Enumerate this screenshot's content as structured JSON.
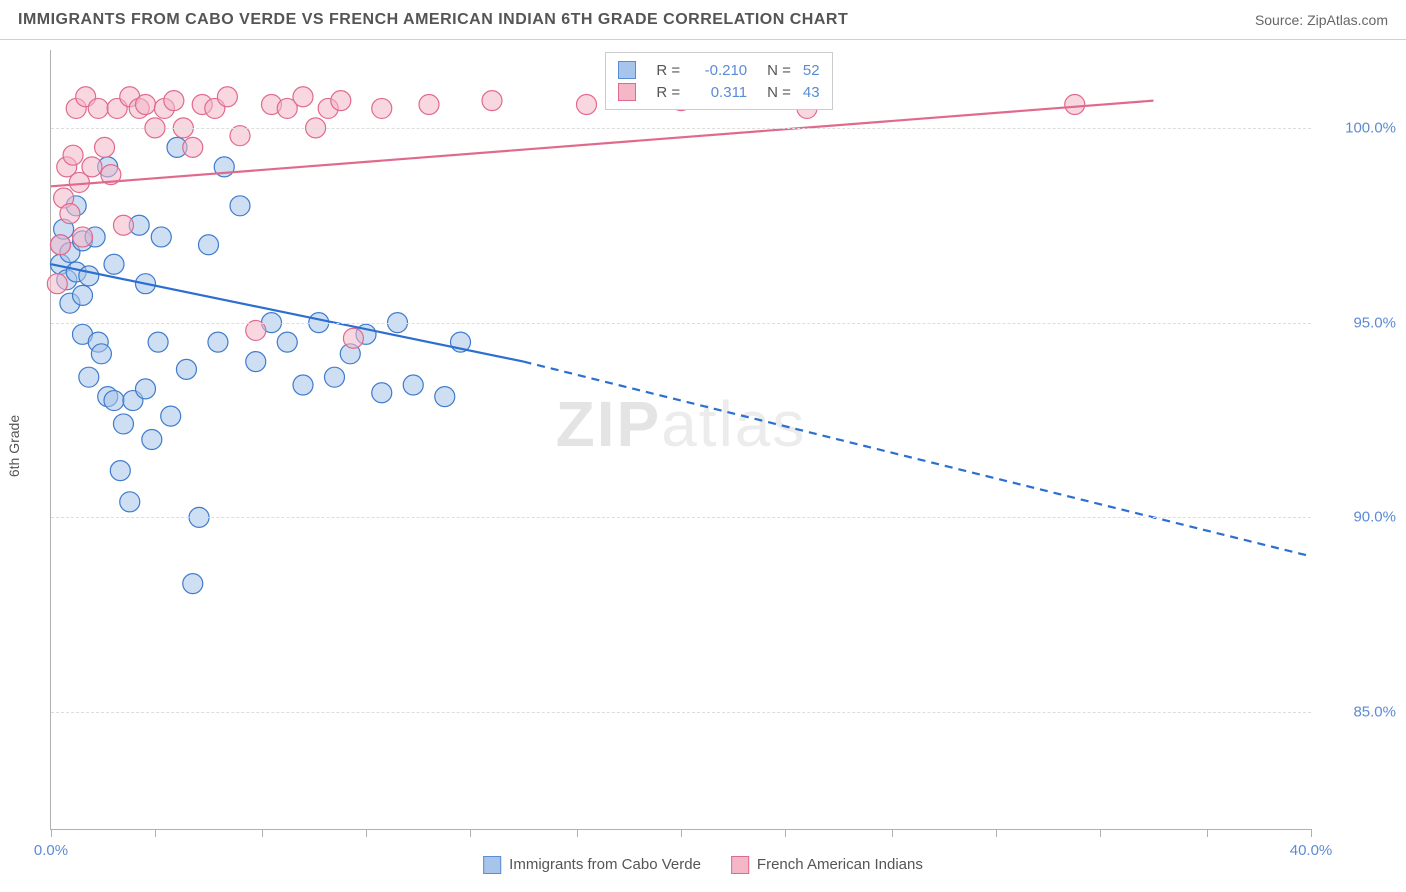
{
  "header": {
    "title": "IMMIGRANTS FROM CABO VERDE VS FRENCH AMERICAN INDIAN 6TH GRADE CORRELATION CHART",
    "source_prefix": "Source: ",
    "source_name": "ZipAtlas.com"
  },
  "axes": {
    "ylabel": "6th Grade",
    "ylim": [
      82,
      102
    ],
    "yticks": [
      85.0,
      90.0,
      95.0,
      100.0
    ],
    "ytick_labels": [
      "85.0%",
      "90.0%",
      "95.0%",
      "100.0%"
    ],
    "xlim": [
      0,
      40
    ],
    "xticks_major": [
      0,
      40
    ],
    "xtick_labels": [
      "0.0%",
      "40.0%"
    ],
    "xticks_minor": [
      3.3,
      6.7,
      10.0,
      13.3,
      16.7,
      20.0,
      23.3,
      26.7,
      30.0,
      33.3,
      36.7
    ],
    "grid_color": "#dddddd",
    "axis_color": "#b0b0b0",
    "tick_label_color": "#5b8bd4",
    "tick_fontsize": 15
  },
  "watermark": {
    "text_bold": "ZIP",
    "text_light": "atlas",
    "color": "#e4e4e4",
    "fontsize": 64
  },
  "bottom_legend": {
    "series1": {
      "label": "Immigrants from Cabo Verde",
      "fill": "#a7c4ea",
      "stroke": "#5b8bd4"
    },
    "series2": {
      "label": "French American Indians",
      "fill": "#f4b7c8",
      "stroke": "#e06a8c"
    }
  },
  "corr_box": {
    "rows": [
      {
        "fill": "#a7c4ea",
        "stroke": "#5b8bd4",
        "r": "-0.210",
        "n": "52"
      },
      {
        "fill": "#f4b7c8",
        "stroke": "#e06a8c",
        "r": "0.311",
        "n": "43"
      }
    ],
    "r_label": "R  =",
    "n_label": "N  ="
  },
  "chart": {
    "type": "scatter",
    "marker_radius": 10,
    "marker_opacity": 0.55,
    "marker_stroke_width": 1.2,
    "series": [
      {
        "name": "Immigrants from Cabo Verde",
        "fill": "#a7c4ea",
        "stroke": "#3f7bcc",
        "points": [
          [
            0.3,
            97.0
          ],
          [
            0.3,
            96.5
          ],
          [
            0.4,
            97.4
          ],
          [
            0.5,
            96.1
          ],
          [
            0.6,
            96.8
          ],
          [
            0.6,
            95.5
          ],
          [
            0.8,
            96.3
          ],
          [
            0.8,
            98.0
          ],
          [
            1.0,
            97.1
          ],
          [
            1.0,
            94.7
          ],
          [
            1.0,
            95.7
          ],
          [
            1.2,
            93.6
          ],
          [
            1.2,
            96.2
          ],
          [
            1.4,
            97.2
          ],
          [
            1.5,
            94.5
          ],
          [
            1.6,
            94.2
          ],
          [
            1.8,
            93.1
          ],
          [
            1.8,
            99.0
          ],
          [
            2.0,
            93.0
          ],
          [
            2.0,
            96.5
          ],
          [
            2.2,
            91.2
          ],
          [
            2.3,
            92.4
          ],
          [
            2.5,
            90.4
          ],
          [
            2.6,
            93.0
          ],
          [
            2.8,
            97.5
          ],
          [
            3.0,
            96.0
          ],
          [
            3.0,
            93.3
          ],
          [
            3.2,
            92.0
          ],
          [
            3.4,
            94.5
          ],
          [
            3.5,
            97.2
          ],
          [
            3.8,
            92.6
          ],
          [
            4.0,
            99.5
          ],
          [
            4.3,
            93.8
          ],
          [
            4.5,
            88.3
          ],
          [
            4.7,
            90.0
          ],
          [
            5.0,
            97.0
          ],
          [
            5.3,
            94.5
          ],
          [
            5.5,
            99.0
          ],
          [
            6.0,
            98.0
          ],
          [
            6.5,
            94.0
          ],
          [
            7.0,
            95.0
          ],
          [
            7.5,
            94.5
          ],
          [
            8.0,
            93.4
          ],
          [
            8.5,
            95.0
          ],
          [
            9.0,
            93.6
          ],
          [
            9.5,
            94.2
          ],
          [
            10.0,
            94.7
          ],
          [
            10.5,
            93.2
          ],
          [
            11.0,
            95.0
          ],
          [
            11.5,
            93.4
          ],
          [
            12.5,
            93.1
          ],
          [
            13.0,
            94.5
          ]
        ],
        "trend": {
          "solid": [
            [
              0,
              96.5
            ],
            [
              15,
              94.0
            ]
          ],
          "dashed": [
            [
              15,
              94.0
            ],
            [
              40,
              89.0
            ]
          ],
          "color": "#2d6fd0",
          "width": 2.2
        }
      },
      {
        "name": "French American Indians",
        "fill": "#f4b7c8",
        "stroke": "#e06a8c",
        "points": [
          [
            0.2,
            96.0
          ],
          [
            0.3,
            97.0
          ],
          [
            0.4,
            98.2
          ],
          [
            0.5,
            99.0
          ],
          [
            0.6,
            97.8
          ],
          [
            0.7,
            99.3
          ],
          [
            0.8,
            100.5
          ],
          [
            0.9,
            98.6
          ],
          [
            1.0,
            97.2
          ],
          [
            1.1,
            100.8
          ],
          [
            1.3,
            99.0
          ],
          [
            1.5,
            100.5
          ],
          [
            1.7,
            99.5
          ],
          [
            1.9,
            98.8
          ],
          [
            2.1,
            100.5
          ],
          [
            2.3,
            97.5
          ],
          [
            2.5,
            100.8
          ],
          [
            2.8,
            100.5
          ],
          [
            3.0,
            100.6
          ],
          [
            3.3,
            100.0
          ],
          [
            3.6,
            100.5
          ],
          [
            3.9,
            100.7
          ],
          [
            4.2,
            100.0
          ],
          [
            4.5,
            99.5
          ],
          [
            4.8,
            100.6
          ],
          [
            5.2,
            100.5
          ],
          [
            5.6,
            100.8
          ],
          [
            6.0,
            99.8
          ],
          [
            6.5,
            94.8
          ],
          [
            7.0,
            100.6
          ],
          [
            7.5,
            100.5
          ],
          [
            8.0,
            100.8
          ],
          [
            8.4,
            100.0
          ],
          [
            8.8,
            100.5
          ],
          [
            9.2,
            100.7
          ],
          [
            9.6,
            94.6
          ],
          [
            10.5,
            100.5
          ],
          [
            12.0,
            100.6
          ],
          [
            14.0,
            100.7
          ],
          [
            17.0,
            100.6
          ],
          [
            20.0,
            100.7
          ],
          [
            24.0,
            100.5
          ],
          [
            32.5,
            100.6
          ]
        ],
        "trend": {
          "solid": [
            [
              0,
              98.5
            ],
            [
              35,
              100.7
            ]
          ],
          "dashed": null,
          "color": "#e06a8c",
          "width": 2.2
        }
      }
    ]
  }
}
